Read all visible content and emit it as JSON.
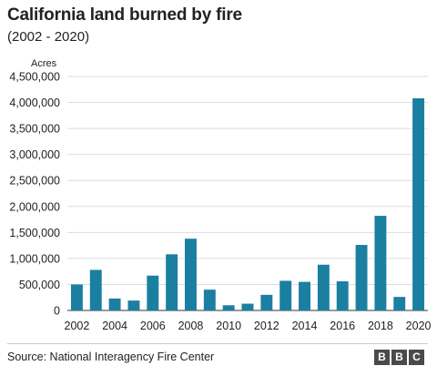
{
  "chart_data": {
    "type": "bar",
    "title": "California land burned by fire",
    "subtitle": "(2002 - 2020)",
    "ylabel": "Acres",
    "ylim": [
      0,
      4500000
    ],
    "yticks": [
      0,
      500000,
      1000000,
      1500000,
      2000000,
      2500000,
      3000000,
      3500000,
      4000000,
      4500000
    ],
    "ytick_labels": [
      "0",
      "500,000",
      "1,000,000",
      "1,500,000",
      "2,000,000",
      "2,500,000",
      "3,000,000",
      "3,500,000",
      "4,000,000",
      "4,500,000"
    ],
    "categories": [
      "2002",
      "2003",
      "2004",
      "2005",
      "2006",
      "2007",
      "2008",
      "2009",
      "2010",
      "2011",
      "2012",
      "2013",
      "2014",
      "2015",
      "2016",
      "2017",
      "2018",
      "2019",
      "2020"
    ],
    "xtick_labels": [
      "2002",
      "",
      "2004",
      "",
      "2006",
      "",
      "2008",
      "",
      "2010",
      "",
      "2012",
      "",
      "2014",
      "",
      "2016",
      "",
      "2018",
      "",
      "2020"
    ],
    "values": [
      500000,
      780000,
      230000,
      190000,
      670000,
      1080000,
      1380000,
      400000,
      100000,
      130000,
      300000,
      570000,
      550000,
      880000,
      560000,
      1260000,
      1820000,
      260000,
      4080000
    ],
    "grid": true,
    "bar_color": "#1b7fa2"
  },
  "footer": {
    "source": "Source: National Interagency Fire Center",
    "logo": [
      "B",
      "B",
      "C"
    ]
  }
}
